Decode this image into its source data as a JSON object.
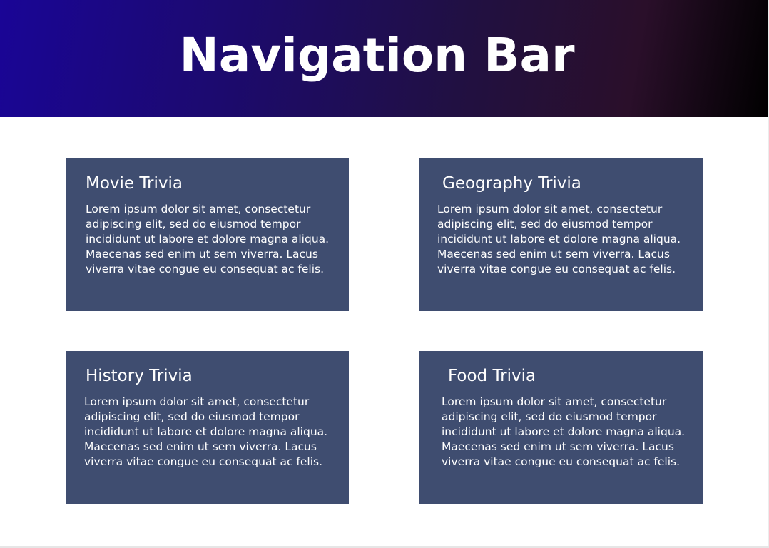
{
  "header": {
    "title": "Navigation Bar",
    "gradient_colors": [
      "#1a0596",
      "#211042",
      "#000000"
    ]
  },
  "cards": [
    {
      "title": "Movie Trivia",
      "body": "Lorem ipsum dolor sit amet, consectetur adipiscing elit, sed do eiusmod tempor incididunt ut labore et dolore magna aliqua. Maecenas sed enim ut sem viverra. Lacus viverra vitae congue eu consequat ac felis."
    },
    {
      "title": "Geography Trivia",
      "body": "Lorem ipsum dolor sit amet, consectetur adipiscing elit, sed do eiusmod tempor incididunt ut labore et dolore magna aliqua. Maecenas sed enim ut sem viverra. Lacus viverra vitae congue eu consequat ac felis."
    },
    {
      "title": "History Trivia",
      "body": "Lorem ipsum dolor sit amet, consectetur adipiscing elit, sed do eiusmod tempor incididunt ut labore et dolore magna aliqua. Maecenas sed enim ut sem viverra. Lacus viverra vitae congue eu consequat ac felis."
    },
    {
      "title": "Food Trivia",
      "body": "Lorem ipsum dolor sit amet, consectetur adipiscing elit, sed do eiusmod tempor incididunt ut labore et dolore magna aliqua. Maecenas sed enim ut sem viverra. Lacus viverra vitae congue eu consequat ac felis."
    }
  ],
  "colors": {
    "card_background": "#3f4d70",
    "text": "#ffffff",
    "page_background": "#ffffff"
  }
}
